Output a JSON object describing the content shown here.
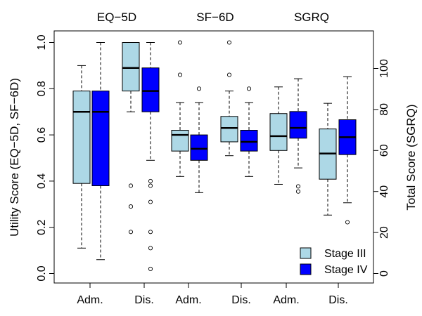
{
  "chart_data": {
    "type": "boxplot",
    "panels": [
      "EQ−5D",
      "SF−6D",
      "SGRQ"
    ],
    "categories": [
      "Adm.",
      "Dis.",
      "Adm.",
      "Dis.",
      "Adm.",
      "Dis."
    ],
    "ylabel_left": "Utility Score (EQ−5D, SF−6D)",
    "ylabel_right": "Total Score (SGRQ)",
    "ylim_left": [
      0,
      1.0
    ],
    "ylim_right": [
      0,
      100
    ],
    "yticks_left": [
      "0.0",
      "0.2",
      "0.4",
      "0.6",
      "0.8",
      "1.0"
    ],
    "yticks_right": [
      "0",
      "20",
      "40",
      "60",
      "80",
      "100"
    ],
    "legend": {
      "placement": "bottom-right",
      "entries": [
        {
          "label": "Stage III",
          "color": "#add8e6"
        },
        {
          "label": "Stage IV",
          "color": "#0000ff"
        }
      ]
    },
    "series": [
      {
        "name": "Stage III",
        "color": "#add8e6",
        "boxes": [
          {
            "group": "EQ-5D Adm.",
            "min": 0.11,
            "q1": 0.39,
            "median": 0.7,
            "q3": 0.79,
            "max": 0.9,
            "outliers": []
          },
          {
            "group": "EQ-5D Dis.",
            "min": 0.7,
            "q1": 0.79,
            "median": 0.89,
            "q3": 1.0,
            "max": 1.0,
            "outliers": [
              0.38,
              0.29,
              0.18
            ]
          },
          {
            "group": "SF-6D Adm.",
            "min": 0.42,
            "q1": 0.53,
            "median": 0.6,
            "q3": 0.62,
            "max": 0.74,
            "outliers": [
              1.0,
              0.86
            ]
          },
          {
            "group": "SF-6D Dis.",
            "min": 0.51,
            "q1": 0.57,
            "median": 0.63,
            "q3": 0.68,
            "max": 0.79,
            "outliers": [
              1.0,
              0.86
            ]
          },
          {
            "group": "SGRQ Adm.",
            "min": 43.5,
            "q1": 60,
            "median": 67,
            "q3": 78,
            "max": 91,
            "outliers": []
          },
          {
            "group": "SGRQ Dis.",
            "min": 28.5,
            "q1": 46,
            "median": 58.5,
            "q3": 70.5,
            "max": 83,
            "outliers": []
          }
        ]
      },
      {
        "name": "Stage IV",
        "color": "#0000ff",
        "boxes": [
          {
            "group": "EQ-5D Adm.",
            "min": 0.06,
            "q1": 0.38,
            "median": 0.7,
            "q3": 0.79,
            "max": 1.0,
            "outliers": []
          },
          {
            "group": "EQ-5D Dis.",
            "min": 0.49,
            "q1": 0.7,
            "median": 0.79,
            "q3": 0.89,
            "max": 1.0,
            "outliers": [
              0.4,
              0.38,
              0.31,
              0.18,
              0.11,
              0.02
            ]
          },
          {
            "group": "SF-6D Adm.",
            "min": 0.35,
            "q1": 0.49,
            "median": 0.54,
            "q3": 0.6,
            "max": 0.74,
            "outliers": [
              0.8
            ]
          },
          {
            "group": "SF-6D Dis.",
            "min": 0.42,
            "q1": 0.53,
            "median": 0.57,
            "q3": 0.62,
            "max": 0.74,
            "outliers": [
              0.8
            ]
          },
          {
            "group": "SGRQ Adm.",
            "min": 51.5,
            "q1": 66,
            "median": 71,
            "q3": 79,
            "max": 95,
            "outliers": [
              42.5,
              40
            ]
          },
          {
            "group": "SGRQ Dis.",
            "min": 34.5,
            "q1": 58,
            "median": 66.5,
            "q3": 75,
            "max": 96,
            "outliers": [
              25
            ]
          }
        ]
      }
    ]
  }
}
